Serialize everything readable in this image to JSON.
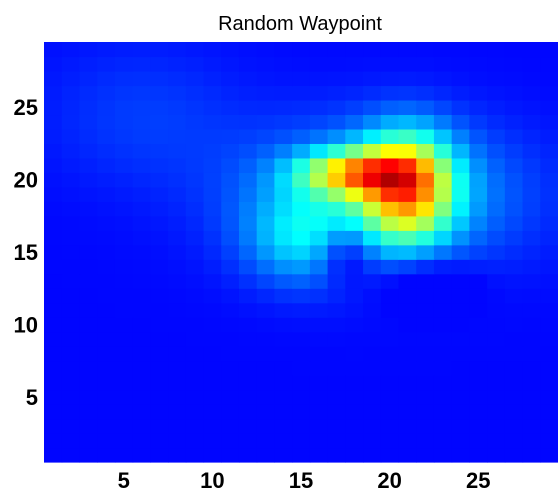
{
  "chart_data": {
    "type": "heatmap",
    "title": "Random Waypoint",
    "xlabel": "",
    "ylabel": "",
    "grid": 29,
    "xlim": [
      0.5,
      29.5
    ],
    "ylim": [
      0.5,
      29.5
    ],
    "x_ticks": [
      5,
      10,
      15,
      20,
      25
    ],
    "y_ticks": [
      5,
      10,
      15,
      20,
      25
    ],
    "colormap": "jet",
    "value_range": [
      0,
      1
    ],
    "components": [
      {
        "x": 21.0,
        "y": 19.5,
        "amp": 0.55,
        "sx": 1.8,
        "sy": 2.6
      },
      {
        "x": 18.0,
        "y": 20.5,
        "amp": 0.45,
        "sx": 2.2,
        "sy": 1.1
      },
      {
        "x": 19.5,
        "y": 19.0,
        "amp": 0.22,
        "sx": 5.5,
        "sy": 3.5
      },
      {
        "x": 15.0,
        "y": 16.0,
        "amp": 0.18,
        "sx": 2.2,
        "sy": 2.2
      },
      {
        "x": 6.0,
        "y": 24.5,
        "amp": 0.06,
        "sx": 4.0,
        "sy": 3.5
      }
    ],
    "holes": [
      {
        "x": 17.5,
        "y": 15.0,
        "amp": 0.15,
        "sx": 1.1,
        "sy": 1.4
      },
      {
        "x": 22.0,
        "y": 13.0,
        "amp": 0.1,
        "sx": 2.0,
        "sy": 1.4
      }
    ]
  }
}
